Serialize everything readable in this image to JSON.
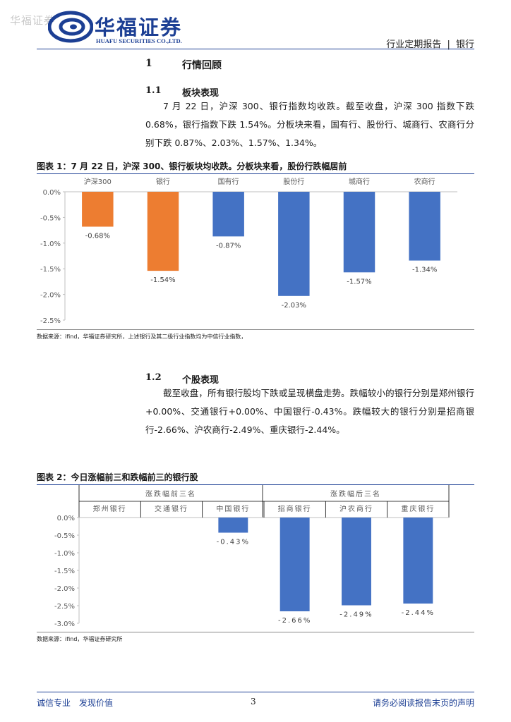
{
  "watermark": "华福证券",
  "logo": {
    "cn": "华福证券",
    "en": "HUAFU SECURITIES CO.,LTD."
  },
  "header": {
    "report_type": "行业定期报告",
    "sep": "|",
    "industry": "银行"
  },
  "section1": {
    "num": "1",
    "title": "行情回顾"
  },
  "section11": {
    "num": "1.1",
    "title": "板块表现",
    "text": "7 月 22 日，沪深 300、银行指数均收跌。截至收盘，沪深 300 指数下跌 0.68%，银行指数下跌 1.54%。分板块来看，国有行、股份行、城商行、农商行分别下跌 0.87%、2.03%、1.57%、1.34%。"
  },
  "fig1": {
    "title": "图表 1：7 月 22 日，沪深 300、银行板块均收跌。分板块来看，股份行跌幅居前",
    "source": "数据来源：ifind，华福证券研究所，上述银行及其二级行业指数均为中信行业指数，"
  },
  "section12": {
    "num": "1.2",
    "title": "个股表现",
    "text": "截至收盘，所有银行股均下跌或呈现横盘走势。跌幅较小的银行分别是郑州银行+0.00%、交通银行+0.00%、中国银行-0.43%。跌幅较大的银行分别是招商银行-2.66%、沪农商行-2.49%、重庆银行-2.44%。"
  },
  "fig2": {
    "title": "图表 2：今日涨幅前三和跌幅前三的银行股",
    "group_left": "涨跌幅前三名",
    "group_right": "涨跌幅后三名",
    "source": "数据来源：ifind，华福证券研究所"
  },
  "footer": {
    "left": "诚信专业　发现价值",
    "page": "3",
    "right": "请务必阅读报告末页的声明"
  },
  "colors": {
    "orange": "#ED7D31",
    "blue": "#4472C4",
    "brand": "#1c3f94"
  },
  "chart_data": [
    {
      "type": "bar",
      "title": "图表 1：7 月 22 日，沪深 300、银行板块均收跌。分板块来看，股份行跌幅居前",
      "categories": [
        "沪深300",
        "银行",
        "国有行",
        "股份行",
        "城商行",
        "农商行"
      ],
      "values": [
        -0.68,
        -1.54,
        -0.87,
        -2.03,
        -1.57,
        -1.34
      ],
      "labels": [
        "-0.68%",
        "-1.54%",
        "-0.87%",
        "-2.03%",
        "-1.57%",
        "-1.34%"
      ],
      "bar_colors": [
        "#ED7D31",
        "#ED7D31",
        "#4472C4",
        "#4472C4",
        "#4472C4",
        "#4472C4"
      ],
      "yticks": [
        "0.0%",
        "-0.5%",
        "-1.0%",
        "-1.5%",
        "-2.0%",
        "-2.5%"
      ],
      "ylim": [
        -2.5,
        0
      ],
      "xlabel": "",
      "ylabel": ""
    },
    {
      "type": "bar",
      "title": "图表 2：今日涨幅前三和跌幅前三的银行股",
      "categories": [
        "郑州银行",
        "交通银行",
        "中国银行",
        "招商银行",
        "沪农商行",
        "重庆银行"
      ],
      "values": [
        0.0,
        0.0,
        -0.43,
        -2.66,
        -2.49,
        -2.44
      ],
      "labels": [
        "",
        "",
        "-0.43%",
        "-2.66%",
        "-2.49%",
        "-2.44%"
      ],
      "bar_colors": [
        "#4472C4",
        "#4472C4",
        "#4472C4",
        "#4472C4",
        "#4472C4",
        "#4472C4"
      ],
      "yticks": [
        "0.0%",
        "-0.5%",
        "-1.0%",
        "-1.5%",
        "-2.0%",
        "-2.5%",
        "-3.0%"
      ],
      "ylim": [
        -3.0,
        0
      ],
      "xlabel": "",
      "ylabel": ""
    }
  ]
}
